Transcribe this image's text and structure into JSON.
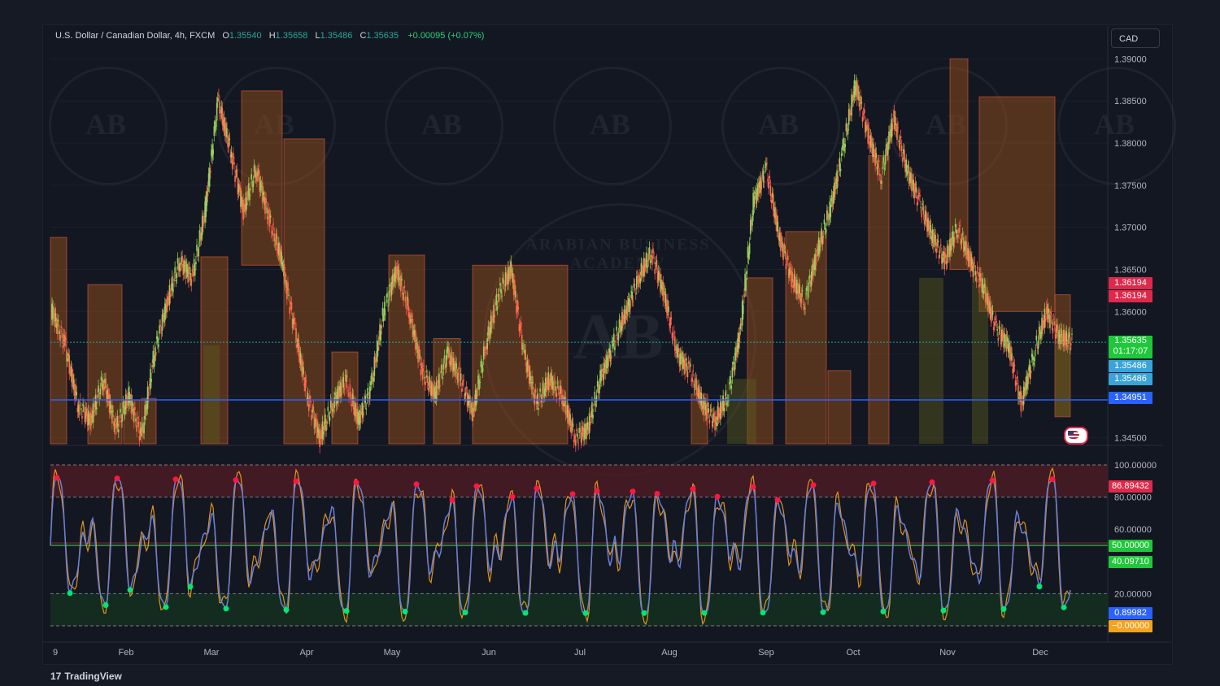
{
  "header": {
    "symbol": "U.S. Dollar / Canadian Dollar, 4h, FXCM",
    "open_label": "O",
    "open": "1.35540",
    "high_label": "H",
    "high": "1.35658",
    "low_label": "L",
    "low": "1.35486",
    "close_label": "C",
    "close": "1.35635",
    "change": "+0.00095 (+0.07%)"
  },
  "currency_button": "CAD",
  "price_axis": [
    "1.39000",
    "1.38500",
    "1.38000",
    "1.37500",
    "1.37000",
    "1.36500",
    "1.36000",
    "1.35500",
    "1.35000",
    "1.34500"
  ],
  "price_badges": {
    "red_1": "1.36194",
    "red_2": "1.36194",
    "last_price": "1.35635",
    "countdown": "01:17:07",
    "blue_1": "1.35486",
    "blue_2": "1.35486",
    "support": "1.34951"
  },
  "osc_axis": [
    "100.00000",
    "80.00000",
    "60.00000",
    "40.00000",
    "20.00000"
  ],
  "osc_badges": {
    "red": "86.89432",
    "green_1": "50.00000",
    "green_2": "40.09710",
    "blue": "0.89982",
    "orange": "−0.00000"
  },
  "time_axis": [
    "9",
    "Feb",
    "Mar",
    "Apr",
    "May",
    "Jun",
    "Jul",
    "Aug",
    "Sep",
    "Oct",
    "Nov",
    "Dec"
  ],
  "watermark": {
    "monogram": "AB",
    "arc_text": "ARABIAN BUSINESS ACADEMY"
  },
  "logo": {
    "mark": "17",
    "name": "TradingView"
  },
  "colors": {
    "background": "#131722",
    "up": "#26a69a",
    "down": "#ef5350",
    "box_fill": "#8b4a1c",
    "support_line": "#2962ff",
    "osc_line": "#6b7fd7",
    "overbought_zone": "#4a1b23",
    "oversold_zone": "#14301f"
  },
  "chart_data": {
    "type": "line",
    "ylim": [
      1.3443,
      1.3912
    ],
    "candles_close": [
      1.36,
      1.356,
      1.349,
      1.347,
      1.352,
      1.346,
      1.35,
      1.345,
      1.355,
      1.361,
      1.366,
      1.364,
      1.372,
      1.385,
      1.379,
      1.372,
      1.377,
      1.371,
      1.366,
      1.358,
      1.35,
      1.345,
      1.349,
      1.352,
      1.347,
      1.351,
      1.36,
      1.365,
      1.36,
      1.353,
      1.35,
      1.355,
      1.352,
      1.348,
      1.356,
      1.362,
      1.365,
      1.355,
      1.349,
      1.352,
      1.35,
      1.345,
      1.346,
      1.352,
      1.356,
      1.36,
      1.364,
      1.367,
      1.362,
      1.355,
      1.353,
      1.349,
      1.347,
      1.35,
      1.358,
      1.373,
      1.377,
      1.369,
      1.364,
      1.361,
      1.367,
      1.372,
      1.379,
      1.387,
      1.381,
      1.376,
      1.383,
      1.377,
      1.373,
      1.369,
      1.366,
      1.37,
      1.366,
      1.363,
      1.358,
      1.356,
      1.349,
      1.355,
      1.36,
      1.357,
      1.3563
    ],
    "support": 1.34951,
    "resistance": 1.36194,
    "last_price": 1.35635,
    "oscillator": {
      "ylim": [
        0,
        100
      ],
      "overbought": 80,
      "oversold": 20,
      "mid": 50,
      "last": 40.0971,
      "signal": 86.89432
    }
  }
}
